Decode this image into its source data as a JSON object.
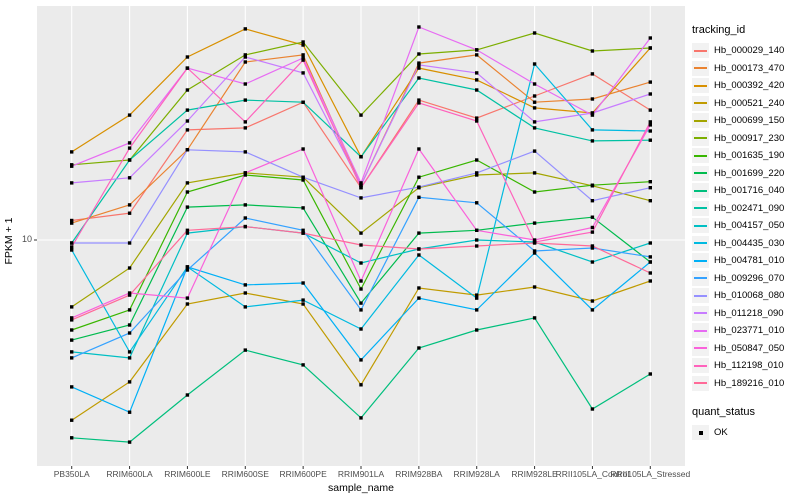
{
  "colors": {
    "panel_background": "#EBEBEB",
    "grid_line": "#FFFFFF",
    "tick_mark": "#333333",
    "tick_label": "#4D4D4D",
    "axis_title": "#000000",
    "point_marker": "#000000",
    "legend_key_background": "#F2F2F2"
  },
  "chart_data": {
    "type": "line",
    "title": "",
    "xlabel": "sample_name",
    "ylabel": "FPKM + 1",
    "y_scale": "log10",
    "ylim": [
      1.2,
      100
    ],
    "grid": "major-only",
    "legend_position": "right",
    "y_ticks": [
      {
        "label": "10",
        "value": 10
      }
    ],
    "categories": [
      "PB350LA",
      "RRIM600LA",
      "RRIM600LE",
      "RRIM600SE",
      "RRIM600PE",
      "RRIM901LA",
      "RRIM928BA",
      "RRIM928LA",
      "RRIM928LE",
      "RRII105LA_Control",
      "RRII105LA_Stressed"
    ],
    "point_shape": "filled-square",
    "legend": {
      "color_title": "tracking_id",
      "shape_title": "quant_status",
      "shape_items": [
        {
          "label": "OK",
          "marker": "black-square"
        }
      ]
    },
    "series": [
      {
        "name": "Hb_000029_140",
        "color": "#F8766D",
        "values": [
          12.1,
          13.0,
          29.4,
          30.0,
          38.6,
          16.7,
          39.4,
          33.0,
          41.0,
          50.9,
          35.7
        ]
      },
      {
        "name": "Hb_000173_470",
        "color": "#EA8331",
        "values": [
          11.8,
          14.1,
          24.2,
          57.2,
          61.3,
          17.1,
          56.6,
          61.3,
          38.6,
          39.8,
          47.0
        ]
      },
      {
        "name": "Hb_000392_420",
        "color": "#D89000",
        "values": [
          23.7,
          34.0,
          60.1,
          79.1,
          67.6,
          22.6,
          53.9,
          48.0,
          36.5,
          34.7,
          65.6
        ]
      },
      {
        "name": "Hb_000521_240",
        "color": "#C09B00",
        "values": [
          1.71,
          2.49,
          5.34,
          5.95,
          5.34,
          2.42,
          6.25,
          5.83,
          6.31,
          5.5,
          6.69
        ]
      },
      {
        "name": "Hb_000699_150",
        "color": "#A3A500",
        "values": [
          5.19,
          7.6,
          17.5,
          19.3,
          18.5,
          10.7,
          16.7,
          18.9,
          19.3,
          17.0,
          14.7
        ]
      },
      {
        "name": "Hb_000917_230",
        "color": "#7CAE00",
        "values": [
          20.9,
          21.9,
          43.5,
          61.3,
          69.6,
          34.0,
          61.9,
          64.4,
          76.0,
          63.7,
          65.6
        ]
      },
      {
        "name": "Hb_001635_190",
        "color": "#39B600",
        "values": [
          4.14,
          5.04,
          16.0,
          18.9,
          18.0,
          6.19,
          18.5,
          21.9,
          16.0,
          17.1,
          17.7
        ]
      },
      {
        "name": "Hb_001699_220",
        "color": "#00BB4E",
        "values": [
          3.75,
          4.35,
          13.8,
          14.1,
          13.7,
          5.39,
          10.7,
          11.0,
          11.8,
          12.5,
          8.06
        ]
      },
      {
        "name": "Hb_001716_040",
        "color": "#00BF7D",
        "values": [
          1.44,
          1.38,
          2.19,
          3.4,
          2.94,
          1.75,
          3.47,
          4.14,
          4.66,
          1.91,
          2.69
        ]
      },
      {
        "name": "Hb_002471_090",
        "color": "#00C1A3",
        "values": [
          9.71,
          21.9,
          35.7,
          39.4,
          38.6,
          22.6,
          48.9,
          43.5,
          30.0,
          26.4,
          26.6
        ]
      },
      {
        "name": "Hb_004157_050",
        "color": "#00BFC4",
        "values": [
          3.34,
          3.15,
          10.7,
          11.4,
          10.7,
          7.98,
          9.16,
          10.0,
          9.81,
          8.06,
          9.71
        ]
      },
      {
        "name": "Hb_004435_030",
        "color": "#00BAE0",
        "values": [
          9.07,
          3.34,
          7.68,
          5.19,
          5.55,
          4.18,
          8.63,
          5.66,
          56.1,
          29.4,
          29.1
        ]
      },
      {
        "name": "Hb_004781_010",
        "color": "#00B0F6",
        "values": [
          2.37,
          1.85,
          7.68,
          6.44,
          6.56,
          3.09,
          5.66,
          5.04,
          8.8,
          5.04,
          8.06
        ]
      },
      {
        "name": "Hb_009296_070",
        "color": "#35A2FF",
        "values": [
          3.15,
          4.02,
          7.45,
          12.4,
          11.0,
          5.04,
          15.2,
          14.4,
          8.98,
          9.25,
          8.47
        ]
      },
      {
        "name": "Hb_010068_080",
        "color": "#9590FF",
        "values": [
          9.71,
          9.71,
          24.2,
          23.7,
          18.5,
          15.1,
          16.8,
          19.3,
          23.9,
          14.7,
          16.7
        ]
      },
      {
        "name": "Hb_011218_090",
        "color": "#C77CFF",
        "values": [
          17.5,
          18.4,
          32.1,
          60.1,
          51.4,
          17.1,
          55.6,
          51.4,
          31.8,
          34.7,
          41.8
        ]
      },
      {
        "name": "Hb_023771_010",
        "color": "#E76BF3",
        "values": [
          20.6,
          25.9,
          53.9,
          46.1,
          59.5,
          17.5,
          80.6,
          64.4,
          46.1,
          34.0,
          72.4
        ]
      },
      {
        "name": "Hb_050847_050",
        "color": "#FA62DB",
        "values": [
          4.66,
          5.95,
          5.66,
          19.3,
          24.4,
          6.69,
          24.4,
          11.0,
          10.0,
          11.3,
          30.9
        ]
      },
      {
        "name": "Hb_112198_010",
        "color": "#FF62BC",
        "values": [
          9.34,
          24.6,
          53.9,
          31.8,
          58.3,
          16.7,
          38.3,
          32.1,
          9.81,
          10.8,
          31.8
        ]
      },
      {
        "name": "Hb_189216_010",
        "color": "#FF6A98",
        "values": [
          4.57,
          5.83,
          11.0,
          11.4,
          10.7,
          9.52,
          9.16,
          9.43,
          9.71,
          9.43,
          7.24
        ]
      }
    ]
  }
}
